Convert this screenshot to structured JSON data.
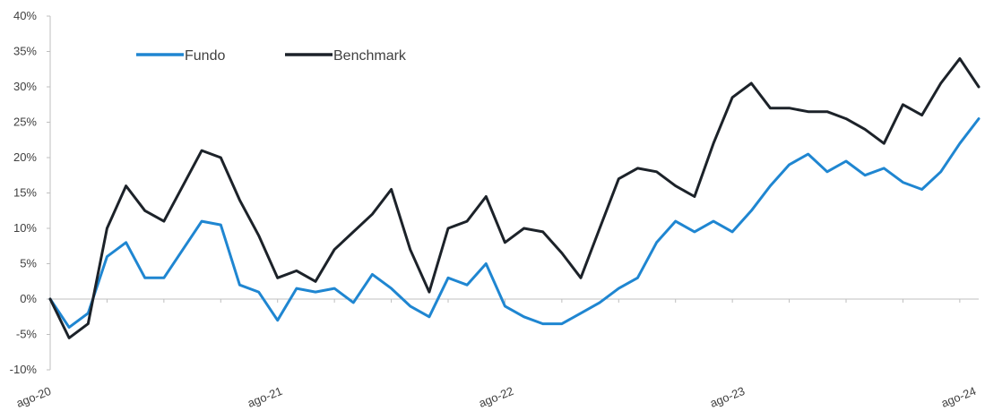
{
  "chart_data": {
    "type": "line",
    "title": "",
    "xlabel": "",
    "ylabel": "",
    "ylim": [
      -10,
      40
    ],
    "y_ticks": [
      -10,
      -5,
      0,
      5,
      10,
      15,
      20,
      25,
      30,
      35,
      40
    ],
    "y_tick_labels": [
      "-10%",
      "-5%",
      "0%",
      "5%",
      "10%",
      "15%",
      "20%",
      "25%",
      "30%",
      "35%",
      "40%"
    ],
    "x_tick_labels": [
      "ago-20",
      "ago-21",
      "ago-22",
      "ago-23",
      "ago-24"
    ],
    "grid": false,
    "legend_position": "top-left",
    "x": [
      "2020-08",
      "2020-09",
      "2020-10",
      "2020-11",
      "2020-12",
      "2021-01",
      "2021-02",
      "2021-03",
      "2021-04",
      "2021-05",
      "2021-06",
      "2021-07",
      "2021-08",
      "2021-09",
      "2021-10",
      "2021-11",
      "2021-12",
      "2022-01",
      "2022-02",
      "2022-03",
      "2022-04",
      "2022-05",
      "2022-06",
      "2022-07",
      "2022-08",
      "2022-09",
      "2022-10",
      "2022-11",
      "2022-12",
      "2023-01",
      "2023-02",
      "2023-03",
      "2023-04",
      "2023-05",
      "2023-06",
      "2023-07",
      "2023-08",
      "2023-09",
      "2023-10",
      "2023-11",
      "2023-12",
      "2024-01",
      "2024-02",
      "2024-03",
      "2024-04",
      "2024-05",
      "2024-06",
      "2024-07",
      "2024-08",
      "2024-09"
    ],
    "series": [
      {
        "name": "Fundo",
        "color": "#1f86d1",
        "values": [
          0.0,
          -4.0,
          -2.0,
          6.0,
          8.0,
          3.0,
          3.0,
          7.0,
          11.0,
          10.5,
          2.0,
          1.0,
          -3.0,
          1.5,
          1.0,
          1.5,
          -0.5,
          3.5,
          1.5,
          -1.0,
          -2.5,
          3.0,
          2.0,
          5.0,
          -1.0,
          -2.5,
          -3.5,
          -3.5,
          -2.0,
          -0.5,
          1.5,
          3.0,
          8.0,
          11.0,
          9.5,
          11.0,
          9.5,
          12.5,
          16.0,
          19.0,
          20.5,
          18.0,
          19.5,
          17.5,
          18.5,
          16.5,
          15.5,
          18.0,
          22.0,
          25.5
        ]
      },
      {
        "name": "Benchmark",
        "color": "#1c2229",
        "values": [
          0.0,
          -5.5,
          -3.5,
          10.0,
          16.0,
          12.5,
          11.0,
          16.0,
          21.0,
          20.0,
          14.0,
          9.0,
          3.0,
          4.0,
          2.5,
          7.0,
          9.5,
          12.0,
          15.5,
          7.0,
          1.0,
          10.0,
          11.0,
          14.5,
          8.0,
          10.0,
          9.5,
          6.5,
          3.0,
          10.0,
          17.0,
          18.5,
          18.0,
          16.0,
          14.5,
          22.0,
          28.5,
          30.5,
          27.0,
          27.0,
          26.5,
          26.5,
          25.5,
          24.0,
          22.0,
          27.5,
          26.0,
          30.5,
          34.0,
          30.0
        ]
      }
    ]
  }
}
